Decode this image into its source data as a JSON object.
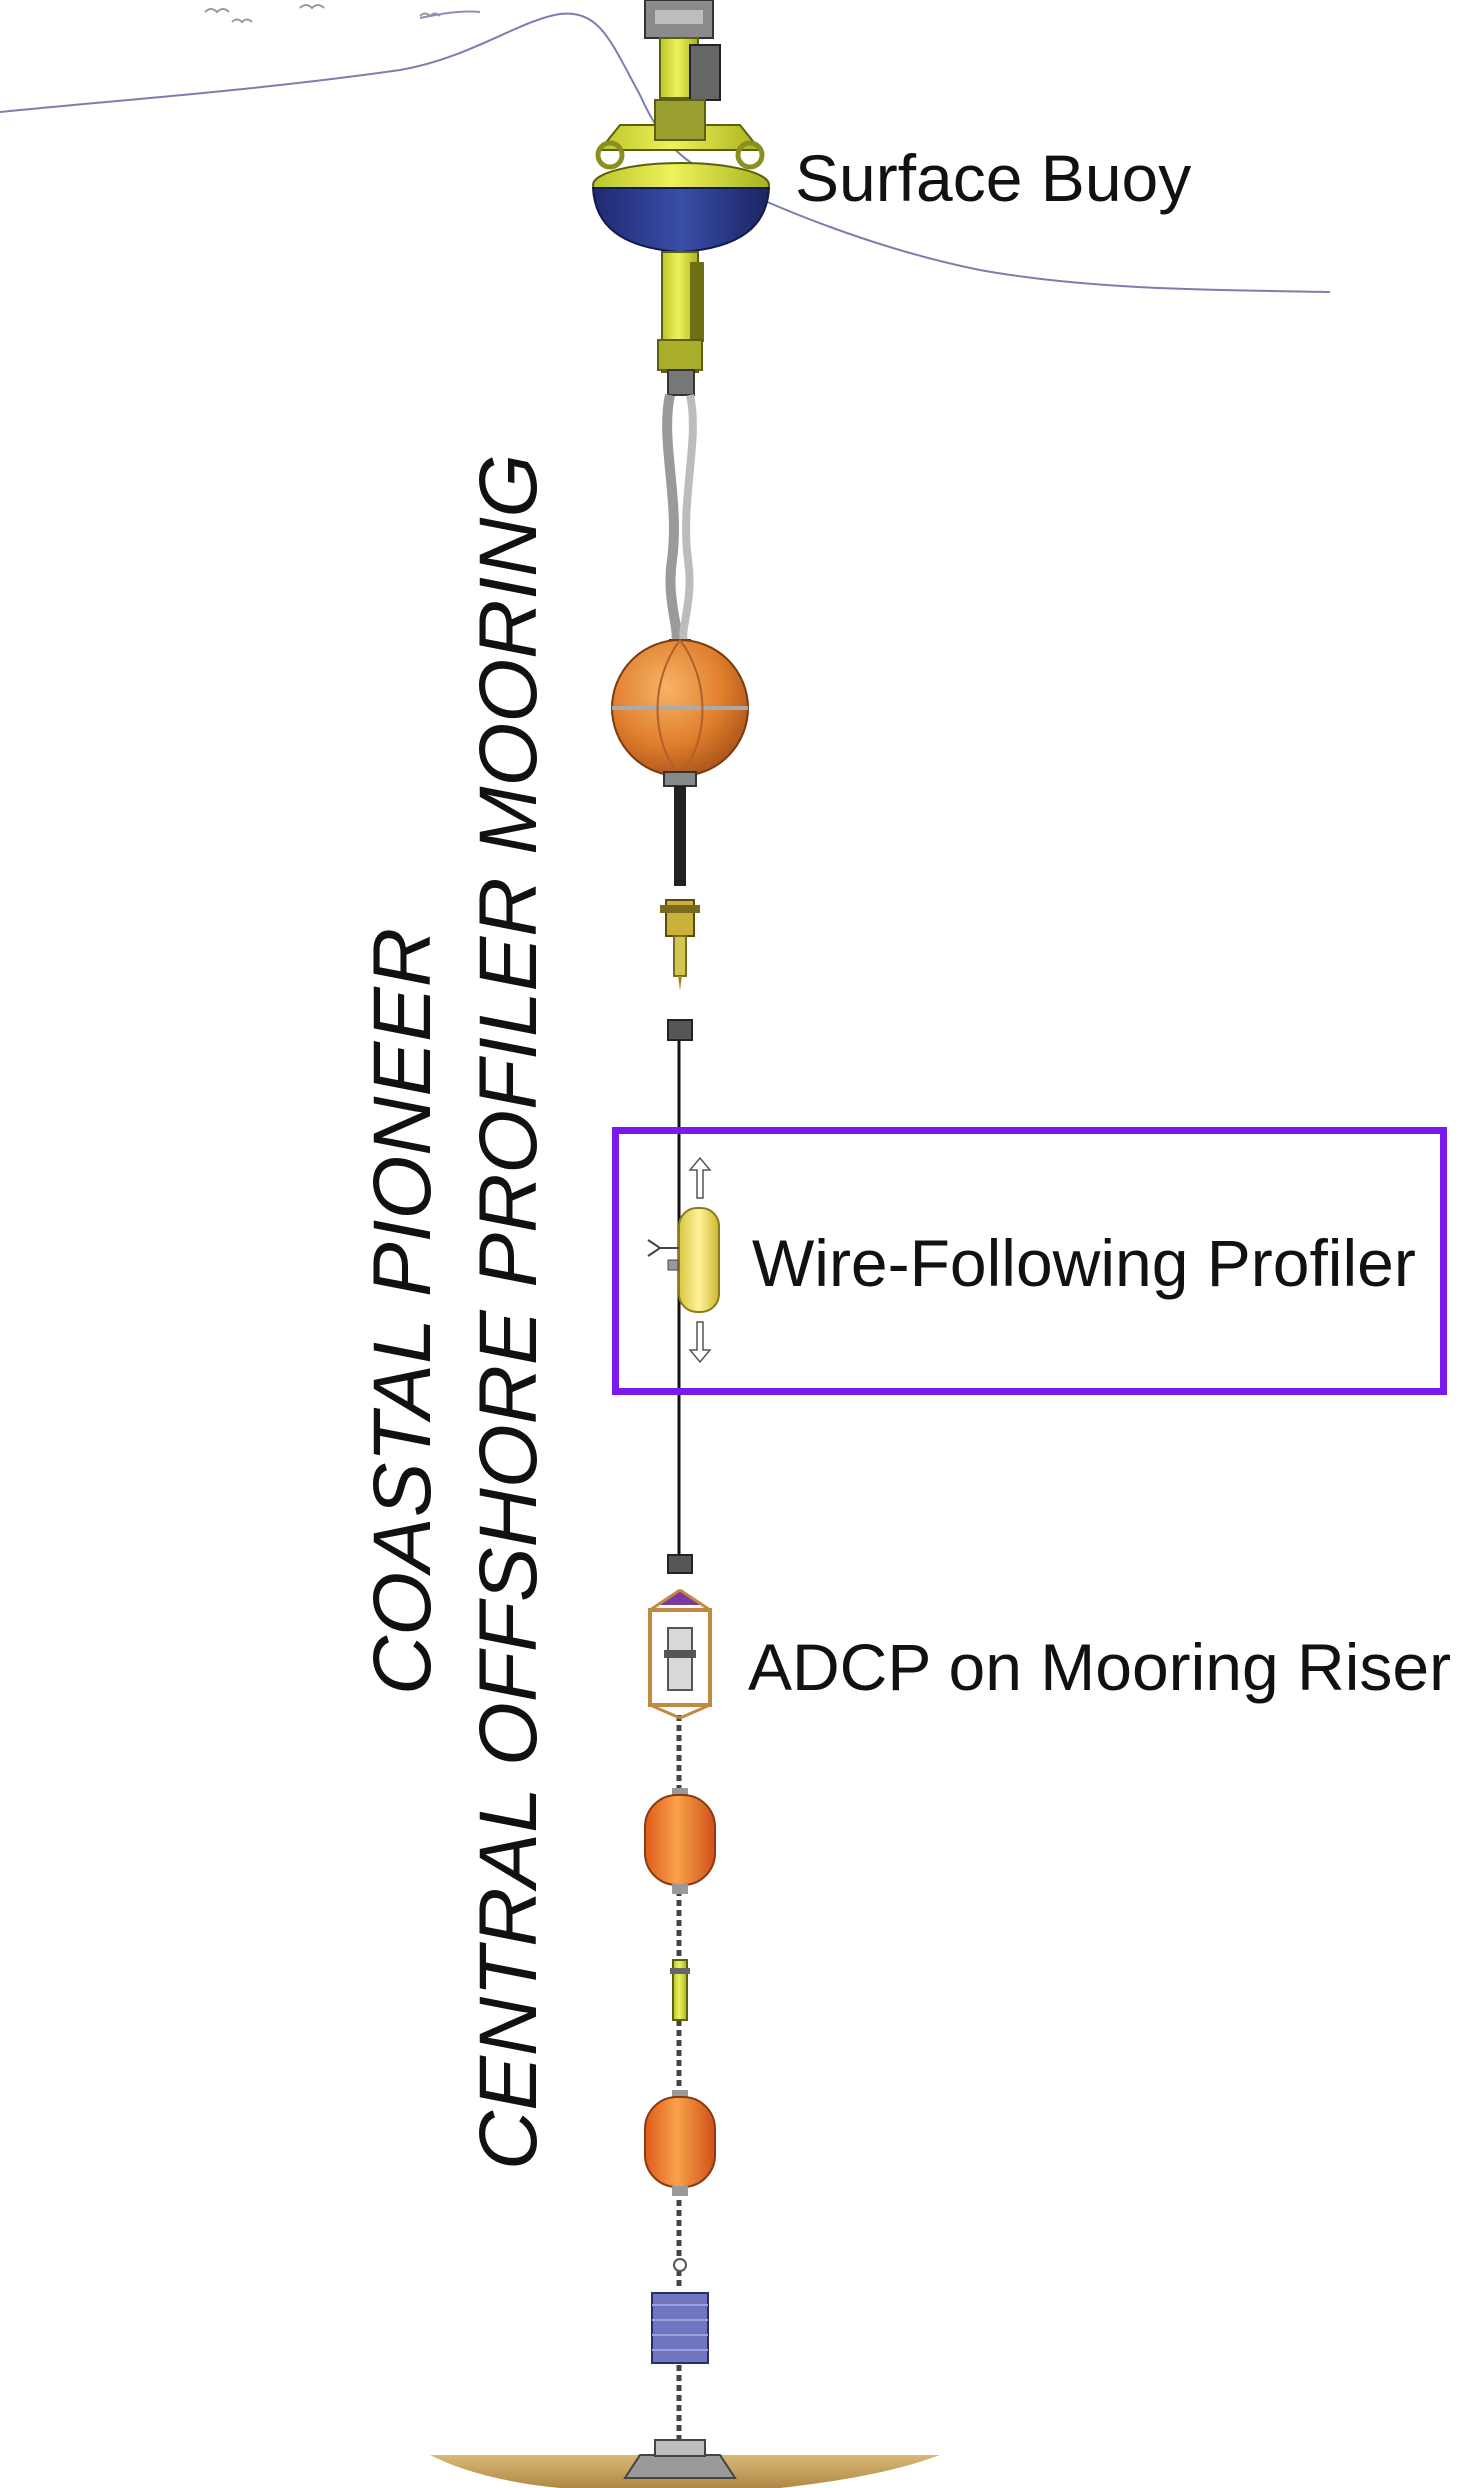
{
  "title": {
    "line1": "COASTAL PIONEER",
    "line2": "CENTRAL OFFSHORE PROFILER MOORING"
  },
  "labels": {
    "surface_buoy": "Surface Buoy",
    "profiler": "Wire-Following Profiler",
    "adcp": "ADCP on Mooring Riser"
  },
  "colors": {
    "buoy_yellow": "#d8e23a",
    "buoy_navy": "#2a3b8c",
    "float_orange": "#e8873a",
    "profiler_yellow": "#f2e66a",
    "highlight_box": "#7a18f0",
    "sea_surface": "#7a7fb0",
    "seabed": "#c9a565",
    "anchor_block": "#6f75bf"
  },
  "highlight": {
    "target": "Wire-Following Profiler"
  }
}
